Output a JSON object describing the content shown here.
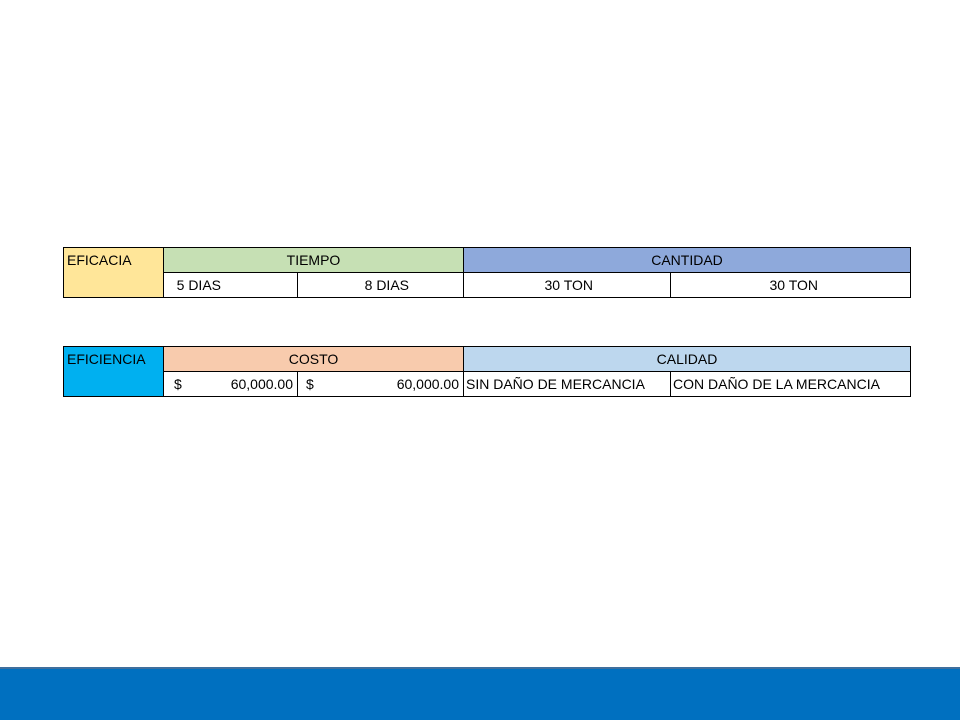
{
  "tables": [
    {
      "label": "EFICACIA",
      "groups": [
        "TIEMPO",
        "CANTIDAD"
      ],
      "cells": [
        "5 DIAS",
        "8 DIAS",
        "30 TON",
        "30 TON"
      ]
    },
    {
      "label": "EFICIENCIA",
      "groups": [
        "COSTO",
        "CALIDAD"
      ],
      "cells": [
        {
          "symbol": "$",
          "amount": "60,000.00"
        },
        {
          "symbol": "$",
          "amount": "60,000.00"
        },
        "SIN DAÑO DE MERCANCIA",
        "CON DAÑO DE LA MERCANCIA"
      ]
    }
  ]
}
